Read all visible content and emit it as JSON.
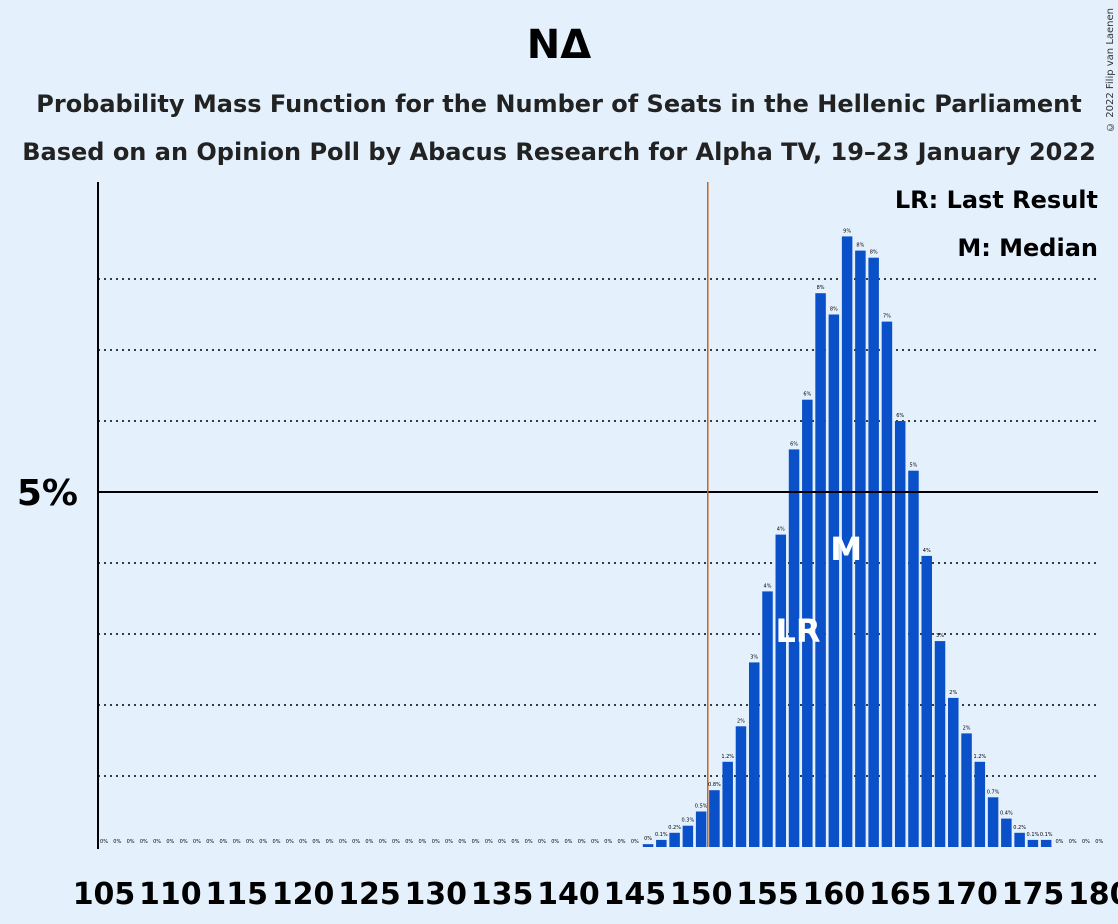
{
  "title": "ΝΔ",
  "subtitle_1": "Probability Mass Function for the Number of Seats in the Hellenic Parliament",
  "subtitle_2": "Based on an Opinion Poll by Abacus Research for Alpha TV, 19–23 January 2022",
  "copyright": "© 2022 Filip van Laenen",
  "legend": {
    "last_result": "LR: Last Result",
    "median": "M: Median"
  },
  "colors": {
    "bar": "#0a50c8",
    "last_result_line": "#c8641e",
    "background": "#e4f1fd"
  },
  "chart_data": {
    "type": "bar",
    "x": [
      105,
      106,
      107,
      108,
      109,
      110,
      111,
      112,
      113,
      114,
      115,
      116,
      117,
      118,
      119,
      120,
      121,
      122,
      123,
      124,
      125,
      126,
      127,
      128,
      129,
      130,
      131,
      132,
      133,
      134,
      135,
      136,
      137,
      138,
      139,
      140,
      141,
      142,
      143,
      144,
      145,
      146,
      147,
      148,
      149,
      150,
      151,
      152,
      153,
      154,
      155,
      156,
      157,
      158,
      159,
      160,
      161,
      162,
      163,
      164,
      165,
      166,
      167,
      168,
      169,
      170,
      171,
      172,
      173,
      174,
      175,
      176,
      177,
      178,
      179,
      180
    ],
    "values": [
      0,
      0,
      0,
      0,
      0,
      0,
      0,
      0,
      0,
      0,
      0,
      0,
      0,
      0,
      0,
      0,
      0,
      0,
      0,
      0,
      0,
      0,
      0,
      0,
      0,
      0,
      0,
      0,
      0,
      0,
      0,
      0,
      0,
      0,
      0,
      0,
      0,
      0,
      0,
      0,
      0,
      0.04,
      0.1,
      0.2,
      0.3,
      0.5,
      0.8,
      1.2,
      1.7,
      2.6,
      3.6,
      4.4,
      5.6,
      6.3,
      7.8,
      7.5,
      8.6,
      8.4,
      8.3,
      7.4,
      6.0,
      5.3,
      4.1,
      2.9,
      2.1,
      1.6,
      1.2,
      0.7,
      0.4,
      0.2,
      0.1,
      0.1,
      0,
      0,
      0,
      0
    ],
    "value_labels": [
      "0%",
      "0%",
      "0%",
      "0%",
      "0%",
      "0%",
      "0%",
      "0%",
      "0%",
      "0%",
      "0%",
      "0%",
      "0%",
      "0%",
      "0%",
      "0%",
      "0%",
      "0%",
      "0%",
      "0%",
      "0%",
      "0%",
      "0%",
      "0%",
      "0%",
      "0%",
      "0%",
      "0%",
      "0%",
      "0%",
      "0%",
      "0%",
      "0%",
      "0%",
      "0%",
      "0%",
      "0%",
      "0%",
      "0%",
      "0%",
      "0%",
      "0%",
      "0.1%",
      "0.2%",
      "0.3%",
      "0.5%",
      "0.8%",
      "1.2%",
      "2%",
      "3%",
      "4%",
      "4%",
      "6%",
      "6%",
      "8%",
      "8%",
      "9%",
      "8%",
      "8%",
      "7%",
      "6%",
      "5%",
      "4%",
      "3%",
      "2%",
      "2%",
      "1.2%",
      "0.7%",
      "0.4%",
      "0.2%",
      "0.1%",
      "0.1%",
      "0%",
      "0%",
      "0%",
      "0%"
    ],
    "x_ticks": [
      105,
      110,
      115,
      120,
      125,
      130,
      135,
      140,
      145,
      150,
      155,
      160,
      165,
      170,
      175,
      180
    ],
    "y_tick_label": "5%",
    "y_tick_value": 5,
    "ylim": [
      0,
      9.4
    ],
    "gridlines": [
      1,
      2,
      3,
      4,
      6,
      7,
      8
    ],
    "last_result": 151,
    "last_result_label": "LR",
    "last_result_bar": 157,
    "median": 161,
    "median_label": "M"
  }
}
